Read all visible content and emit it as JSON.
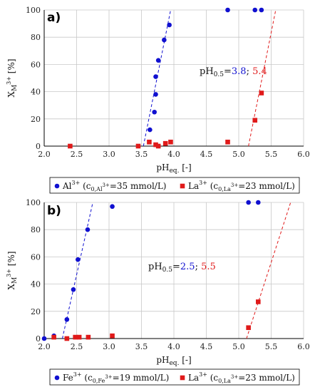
{
  "colors": {
    "al": "#1010d0",
    "la": "#e01a1a",
    "fe": "#1010d0",
    "grid": "#c8c8c8",
    "axis": "#000000"
  },
  "chart_data": [
    {
      "panel_label": "a)",
      "type": "scatter",
      "xlim": [
        2.0,
        6.0
      ],
      "ylim": [
        0,
        100
      ],
      "xticks": [
        "2.0",
        "2.5",
        "3.0",
        "3.5",
        "4.0",
        "4.5",
        "5.0",
        "5.5",
        "6.0"
      ],
      "yticks": [
        "0",
        "20",
        "40",
        "60",
        "80",
        "100"
      ],
      "grid": true,
      "xlabel": {
        "main": "pH",
        "sub": "eq.",
        "rest": " [-]"
      },
      "ylabel": {
        "main": "X",
        "sub": "M",
        "sup": "3+",
        "rest": " [%]"
      },
      "annotation": {
        "prefix": "pH",
        "prefix_sub": "0.5",
        "eq": "=",
        "value1": "3.8",
        "sep": "; ",
        "value2": "5.4"
      },
      "series": [
        {
          "marker": "circle",
          "color_key": "al",
          "legend": {
            "ion": "Al",
            "ion_sup": "3+",
            "open": " (c",
            "sub": "0,Al",
            "sub_sup": "3+",
            "close": "=35 mmol/L)"
          },
          "points": [
            [
              3.63,
              12
            ],
            [
              3.7,
              25
            ],
            [
              3.72,
              38
            ],
            [
              3.72,
              51
            ],
            [
              3.76,
              63
            ],
            [
              3.85,
              78
            ],
            [
              3.93,
              89
            ],
            [
              4.83,
              100
            ],
            [
              5.25,
              100
            ],
            [
              5.35,
              100
            ]
          ],
          "trend": [
            [
              3.53,
              0
            ],
            [
              3.95,
              100
            ]
          ]
        },
        {
          "marker": "square",
          "color_key": "la",
          "legend": {
            "ion": "La",
            "ion_sup": "3+",
            "open": " (c",
            "sub": "0,La",
            "sub_sup": "3+",
            "close": "=23 mmol/L)"
          },
          "points": [
            [
              2.4,
              0
            ],
            [
              3.45,
              0
            ],
            [
              3.62,
              3
            ],
            [
              3.72,
              1
            ],
            [
              3.76,
              0
            ],
            [
              3.87,
              2
            ],
            [
              3.95,
              3
            ],
            [
              4.83,
              3
            ],
            [
              5.25,
              19
            ],
            [
              5.35,
              39
            ]
          ],
          "trend": [
            [
              5.15,
              0
            ],
            [
              5.57,
              100
            ]
          ]
        }
      ]
    },
    {
      "panel_label": "b)",
      "type": "scatter",
      "xlim": [
        2.0,
        6.0
      ],
      "ylim": [
        0,
        100
      ],
      "xticks": [
        "2.0",
        "2.5",
        "3.0",
        "3.5",
        "4.0",
        "4.5",
        "5.0",
        "5.5",
        "6.0"
      ],
      "yticks": [
        "0",
        "20",
        "40",
        "60",
        "80",
        "100"
      ],
      "grid": true,
      "xlabel": {
        "main": "pH",
        "sub": "eq.",
        "rest": " [-]"
      },
      "ylabel": {
        "main": "X",
        "sub": "M",
        "sup": "3+",
        "rest": " [%]"
      },
      "annotation": {
        "prefix": "pH",
        "prefix_sub": "0.5",
        "eq": "=",
        "value1": "2.5",
        "sep": "; ",
        "value2": "5.5"
      },
      "series": [
        {
          "marker": "circle",
          "color_key": "fe",
          "legend": {
            "ion": "Fe",
            "ion_sup": "3+",
            "open": " (c",
            "sub": "0,Fe",
            "sub_sup": "3+",
            "close": "=19 mmol/L)"
          },
          "points": [
            [
              2.0,
              0
            ],
            [
              2.15,
              2
            ],
            [
              2.35,
              14
            ],
            [
              2.45,
              36
            ],
            [
              2.52,
              58
            ],
            [
              2.67,
              80
            ],
            [
              3.05,
              97
            ],
            [
              5.15,
              100
            ],
            [
              5.3,
              100
            ]
          ],
          "trend": [
            [
              2.28,
              0
            ],
            [
              2.75,
              100
            ]
          ]
        },
        {
          "marker": "square",
          "color_key": "la",
          "legend": {
            "ion": "La",
            "ion_sup": "3+",
            "open": " (c",
            "sub": "0,La",
            "sub_sup": "3+",
            "close": "=23 mmol/L)"
          },
          "points": [
            [
              2.15,
              1
            ],
            [
              2.35,
              0
            ],
            [
              2.48,
              1
            ],
            [
              2.54,
              1
            ],
            [
              2.68,
              1
            ],
            [
              3.05,
              2
            ],
            [
              5.15,
              8
            ],
            [
              5.3,
              27
            ]
          ],
          "trend": [
            [
              5.12,
              0
            ],
            [
              5.8,
              100
            ]
          ]
        }
      ]
    }
  ]
}
